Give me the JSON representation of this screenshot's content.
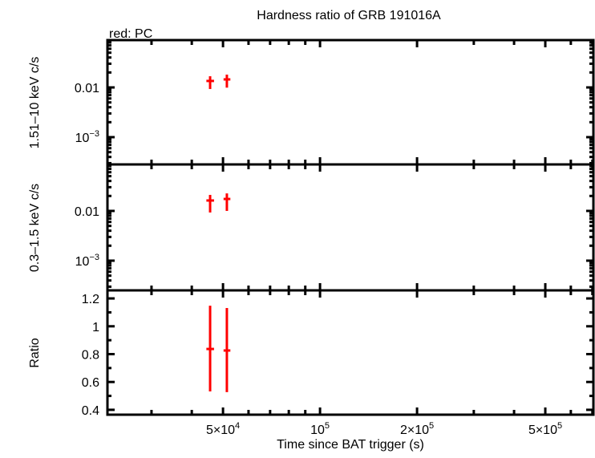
{
  "chart_data": {
    "type": "scatter",
    "title": "Hardness ratio of GRB 191016A",
    "subtitle": "red: PC",
    "xlabel": "Time since BAT trigger (s)",
    "xscale": "log",
    "xlim": [
      21900,
      705000
    ],
    "xticks": [
      {
        "value": 50000,
        "label": "5×10",
        "sup": "4"
      },
      {
        "value": 100000,
        "label": "10",
        "sup": "5"
      },
      {
        "value": 200000,
        "label": "2×10",
        "sup": "5"
      },
      {
        "value": 500000,
        "label": "5×10",
        "sup": "5"
      }
    ],
    "series_color": "#ff0000",
    "panels": [
      {
        "ylabel": "1.51–10 keV c/s",
        "yscale": "log",
        "ylim": [
          0.000283,
          0.0895
        ],
        "yticks": [
          {
            "value": 0.01,
            "label": "0.01",
            "sup": ""
          },
          {
            "value": 0.001,
            "label": "10",
            "sup": "−3"
          }
        ],
        "points": [
          {
            "x": 45600,
            "xerr": [
              44400,
              46900
            ],
            "y": 0.0135,
            "yerr": [
              0.0093,
              0.0168
            ]
          },
          {
            "x": 51400,
            "xerr": [
              50200,
              52700
            ],
            "y": 0.0145,
            "yerr": [
              0.0099,
              0.0181
            ]
          }
        ]
      },
      {
        "ylabel": "0.3–1.5 keV c/s",
        "yscale": "log",
        "ylim": [
          0.000253,
          0.086
        ],
        "yticks": [
          {
            "value": 0.01,
            "label": "0.01",
            "sup": ""
          },
          {
            "value": 0.001,
            "label": "10",
            "sup": "−3"
          }
        ],
        "points": [
          {
            "x": 45600,
            "xerr": [
              44400,
              46900
            ],
            "y": 0.0162,
            "yerr": [
              0.0093,
              0.021
            ]
          },
          {
            "x": 51400,
            "xerr": [
              50200,
              52700
            ],
            "y": 0.0174,
            "yerr": [
              0.01,
              0.0225
            ]
          }
        ]
      },
      {
        "ylabel": "Ratio",
        "yscale": "linear",
        "ylim": [
          0.365,
          1.258
        ],
        "yticks": [
          {
            "value": 1.2,
            "label": "1.2",
            "sup": ""
          },
          {
            "value": 1.0,
            "label": "1",
            "sup": ""
          },
          {
            "value": 0.8,
            "label": "0.8",
            "sup": ""
          },
          {
            "value": 0.6,
            "label": "0.6",
            "sup": ""
          },
          {
            "value": 0.4,
            "label": "0.4",
            "sup": ""
          }
        ],
        "points": [
          {
            "x": 45600,
            "xerr": [
              44400,
              46900
            ],
            "y": 0.837,
            "yerr": [
              0.532,
              1.148
            ]
          },
          {
            "x": 51400,
            "xerr": [
              50200,
              52700
            ],
            "y": 0.826,
            "yerr": [
              0.527,
              1.131
            ]
          }
        ]
      }
    ]
  }
}
